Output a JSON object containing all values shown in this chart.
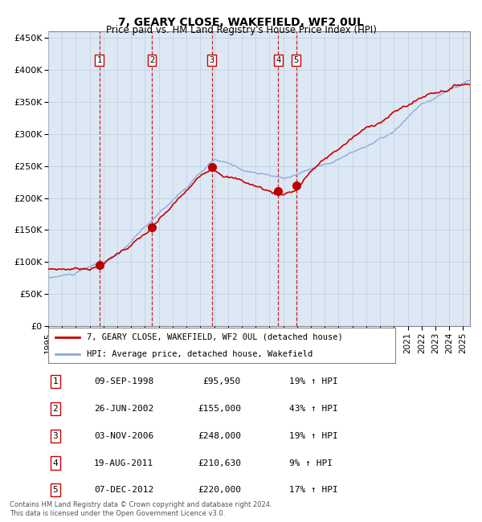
{
  "title": "7, GEARY CLOSE, WAKEFIELD, WF2 0UL",
  "subtitle": "Price paid vs. HM Land Registry's House Price Index (HPI)",
  "xlim_start": 1995.0,
  "xlim_end": 2025.5,
  "ylim": [
    0,
    460000
  ],
  "yticks": [
    0,
    50000,
    100000,
    150000,
    200000,
    250000,
    300000,
    350000,
    400000,
    450000
  ],
  "ytick_labels": [
    "£0",
    "£50K",
    "£100K",
    "£150K",
    "£200K",
    "£250K",
    "£300K",
    "£350K",
    "£400K",
    "£450K"
  ],
  "xticks": [
    1995,
    1996,
    1997,
    1998,
    1999,
    2000,
    2001,
    2002,
    2003,
    2004,
    2005,
    2006,
    2007,
    2008,
    2009,
    2010,
    2011,
    2012,
    2013,
    2014,
    2015,
    2016,
    2017,
    2018,
    2019,
    2020,
    2021,
    2022,
    2023,
    2024,
    2025
  ],
  "sale_dates_x": [
    1998.69,
    2002.49,
    2006.84,
    2011.63,
    2012.93
  ],
  "sale_prices_y": [
    95950,
    155000,
    248000,
    210630,
    220000
  ],
  "sale_labels": [
    "1",
    "2",
    "3",
    "4",
    "5"
  ],
  "vline_color": "#cc0000",
  "dot_color": "#bb0000",
  "house_line_color": "#cc0000",
  "hpi_line_color": "#88aadd",
  "background_color": "#dde8f5",
  "grid_color": "#bbccdd",
  "legend_house": "7, GEARY CLOSE, WAKEFIELD, WF2 0UL (detached house)",
  "legend_hpi": "HPI: Average price, detached house, Wakefield",
  "table_data": [
    [
      "1",
      "09-SEP-1998",
      "£95,950",
      "19% ↑ HPI"
    ],
    [
      "2",
      "26-JUN-2002",
      "£155,000",
      "43% ↑ HPI"
    ],
    [
      "3",
      "03-NOV-2006",
      "£248,000",
      "19% ↑ HPI"
    ],
    [
      "4",
      "19-AUG-2011",
      "£210,630",
      "9% ↑ HPI"
    ],
    [
      "5",
      "07-DEC-2012",
      "£220,000",
      "17% ↑ HPI"
    ]
  ],
  "footnote": "Contains HM Land Registry data © Crown copyright and database right 2024.\nThis data is licensed under the Open Government Licence v3.0."
}
